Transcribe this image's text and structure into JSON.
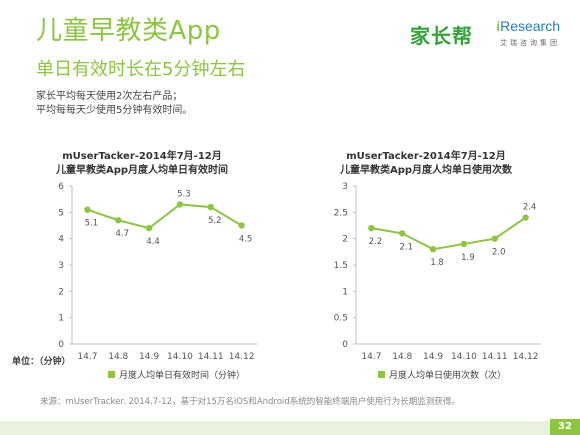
{
  "title": "儿童早教类App",
  "subtitle": "单日有效时长在5分钟左右",
  "logos": {
    "brand_cn": "家长帮",
    "brand_ir_i": "i",
    "brand_ir_rest": "Research",
    "brand_ir_sub": "艾瑞咨询集团"
  },
  "description": [
    "家长平均每天使用2次左右产品；",
    "平均每每天少使用5分钟有效时间。"
  ],
  "unit_label": "单位：（分钟）",
  "source": "来源：mUserTracker. 2014.7-12，基于对15万名iOS和Android系统的智能终端用户使用行为长期监测获得。",
  "page_number": "32",
  "colors": {
    "accent": "#8cc63f",
    "line": "#8cc63f",
    "axis": "#bfbfbf"
  },
  "chart_data": [
    {
      "type": "line",
      "title_line1": "mUserTacker-2014年7月-12月",
      "title_line2": "儿童早教类App月度人均单日有效时间",
      "categories": [
        "14.7",
        "14.8",
        "14.9",
        "14.10",
        "14.11",
        "14.12"
      ],
      "series": [
        {
          "name": "月度人均单日有效时间（分钟）",
          "values": [
            5.1,
            4.7,
            4.4,
            5.3,
            5.2,
            4.5
          ]
        }
      ],
      "ylim": [
        0,
        6
      ],
      "yticks": [
        "0",
        "1",
        "2",
        "3",
        "4",
        "5",
        "6"
      ],
      "grid": false,
      "legend": "bottom"
    },
    {
      "type": "line",
      "title_line1": "mUserTacker-2014年7月-12月",
      "title_line2": "儿童早教类App月度人均单日使用次数",
      "categories": [
        "14.7",
        "14.8",
        "14.9",
        "14.10",
        "14.11",
        "14.12"
      ],
      "series": [
        {
          "name": "月度人均单日使用次数（次）",
          "values": [
            2.2,
            2.1,
            1.8,
            1.9,
            2.0,
            2.4
          ]
        }
      ],
      "ylim": [
        0,
        3
      ],
      "yticks": [
        "0",
        "0.5",
        "1",
        "1.5",
        "2",
        "2.5",
        "3"
      ],
      "grid": false,
      "legend": "bottom"
    }
  ]
}
